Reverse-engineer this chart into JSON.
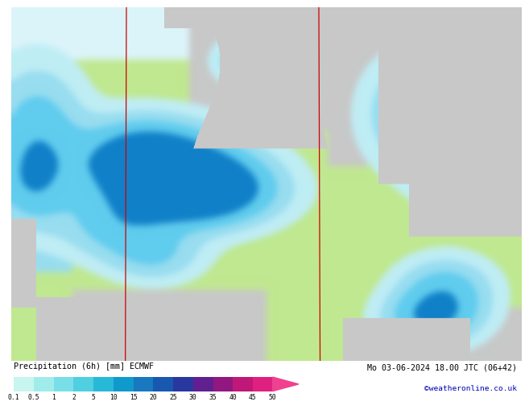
{
  "title_left": "Precipitation (6h) [mm] ECMWF",
  "title_right": "Mo 03-06-2024 18.00 JTC (06+42)",
  "subtitle_right": "©weatheronline.co.uk",
  "colorbar_levels": [
    0.1,
    0.5,
    1,
    2,
    5,
    10,
    15,
    20,
    25,
    30,
    35,
    40,
    45,
    50
  ],
  "colorbar_colors": [
    "#c8f5f0",
    "#a0ecea",
    "#78dfe8",
    "#50cfe0",
    "#28b8d8",
    "#109acc",
    "#1878c0",
    "#1858b0",
    "#2838a0",
    "#602090",
    "#901880",
    "#c01878",
    "#e02080",
    "#f04090"
  ],
  "bg_color": "#ffffff",
  "font_color": "#000000",
  "isobar_red": "#cc0000",
  "isobar_blue": "#0000cc",
  "land_color_gray": "#c8c8c8",
  "land_color_green": "#b8dca0",
  "ocean_light_cyan": "#c8eef8",
  "precip_light_green": "#c0e890",
  "precip_light_cyan": "#98ddf0",
  "precip_cyan": "#60ccee",
  "precip_medium_blue": "#30a8e0",
  "precip_blue": "#1080c8"
}
